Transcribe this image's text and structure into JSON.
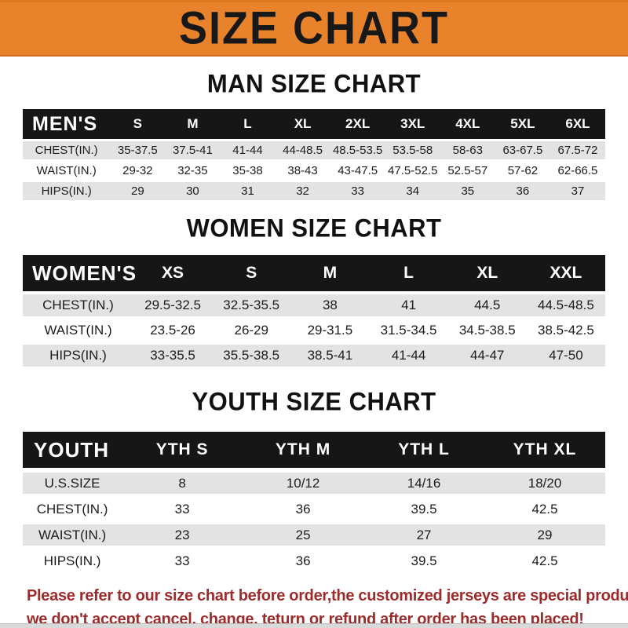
{
  "banner": {
    "title": "SIZE CHART",
    "bg_color": "#e8832b",
    "text_color": "#181818"
  },
  "sections": [
    {
      "heading": "MAN SIZE CHART",
      "header_label": "MEN'S",
      "columns": [
        "S",
        "M",
        "L",
        "XL",
        "2XL",
        "3XL",
        "4XL",
        "5XL",
        "6XL"
      ],
      "rows": [
        {
          "label": "CHEST(IN.)",
          "values": [
            "35-37.5",
            "37.5-41",
            "41-44",
            "44-48.5",
            "48.5-53.5",
            "53.5-58",
            "58-63",
            "63-67.5",
            "67.5-72"
          ]
        },
        {
          "label": "WAIST(IN.)",
          "values": [
            "29-32",
            "32-35",
            "35-38",
            "38-43",
            "43-47.5",
            "47.5-52.5",
            "52.5-57",
            "57-62",
            "62-66.5"
          ]
        },
        {
          "label": "HIPS(IN.)",
          "values": [
            "29",
            "30",
            "31",
            "32",
            "33",
            "34",
            "35",
            "36",
            "37"
          ]
        }
      ]
    },
    {
      "heading": "WOMEN SIZE CHART",
      "header_label": "WOMEN'S",
      "columns": [
        "XS",
        "S",
        "M",
        "L",
        "XL",
        "XXL"
      ],
      "rows": [
        {
          "label": "CHEST(IN.)",
          "values": [
            "29.5-32.5",
            "32.5-35.5",
            "38",
            "41",
            "44.5",
            "44.5-48.5"
          ]
        },
        {
          "label": "WAIST(IN.)",
          "values": [
            "23.5-26",
            "26-29",
            "29-31.5",
            "31.5-34.5",
            "34.5-38.5",
            "38.5-42.5"
          ]
        },
        {
          "label": "HIPS(IN.)",
          "values": [
            "33-35.5",
            "35.5-38.5",
            "38.5-41",
            "41-44",
            "44-47",
            "47-50"
          ]
        }
      ]
    },
    {
      "heading": "YOUTH SIZE CHART",
      "header_label": "YOUTH",
      "columns": [
        "YTH S",
        "YTH M",
        "YTH L",
        "YTH XL"
      ],
      "rows": [
        {
          "label": "U.S.SIZE",
          "values": [
            "8",
            "10/12",
            "14/16",
            "18/20"
          ]
        },
        {
          "label": "CHEST(IN.)",
          "values": [
            "33",
            "36",
            "39.5",
            "42.5"
          ]
        },
        {
          "label": "WAIST(IN.)",
          "values": [
            "23",
            "25",
            "27",
            "29"
          ]
        },
        {
          "label": "HIPS(IN.)",
          "values": [
            "33",
            "36",
            "39.5",
            "42.5"
          ]
        }
      ]
    }
  ],
  "footer": {
    "line1": "Please refer to our size chart before order,the customized jerseys are special products,",
    "line2": "we don't accept cancel, change, teturn or refund after order has been placed!",
    "text_color": "#9c2c2c"
  },
  "chart_data": [
    {
      "type": "table",
      "title": "MAN SIZE CHART",
      "columns": [
        "MEN'S",
        "S",
        "M",
        "L",
        "XL",
        "2XL",
        "3XL",
        "4XL",
        "5XL",
        "6XL"
      ],
      "rows": [
        [
          "CHEST(IN.)",
          "35-37.5",
          "37.5-41",
          "41-44",
          "44-48.5",
          "48.5-53.5",
          "53.5-58",
          "58-63",
          "63-67.5",
          "67.5-72"
        ],
        [
          "WAIST(IN.)",
          "29-32",
          "32-35",
          "35-38",
          "38-43",
          "43-47.5",
          "47.5-52.5",
          "52.5-57",
          "57-62",
          "62-66.5"
        ],
        [
          "HIPS(IN.)",
          "29",
          "30",
          "31",
          "32",
          "33",
          "34",
          "35",
          "36",
          "37"
        ]
      ]
    },
    {
      "type": "table",
      "title": "WOMEN SIZE CHART",
      "columns": [
        "WOMEN'S",
        "XS",
        "S",
        "M",
        "L",
        "XL",
        "XXL"
      ],
      "rows": [
        [
          "CHEST(IN.)",
          "29.5-32.5",
          "32.5-35.5",
          "38",
          "41",
          "44.5",
          "44.5-48.5"
        ],
        [
          "WAIST(IN.)",
          "23.5-26",
          "26-29",
          "29-31.5",
          "31.5-34.5",
          "34.5-38.5",
          "38.5-42.5"
        ],
        [
          "HIPS(IN.)",
          "33-35.5",
          "35.5-38.5",
          "38.5-41",
          "41-44",
          "44-47",
          "47-50"
        ]
      ]
    },
    {
      "type": "table",
      "title": "YOUTH SIZE CHART",
      "columns": [
        "YOUTH",
        "YTH S",
        "YTH M",
        "YTH L",
        "YTH XL"
      ],
      "rows": [
        [
          "U.S.SIZE",
          "8",
          "10/12",
          "14/16",
          "18/20"
        ],
        [
          "CHEST(IN.)",
          "33",
          "36",
          "39.5",
          "42.5"
        ],
        [
          "WAIST(IN.)",
          "23",
          "25",
          "27",
          "29"
        ],
        [
          "HIPS(IN.)",
          "33",
          "36",
          "39.5",
          "42.5"
        ]
      ]
    }
  ]
}
